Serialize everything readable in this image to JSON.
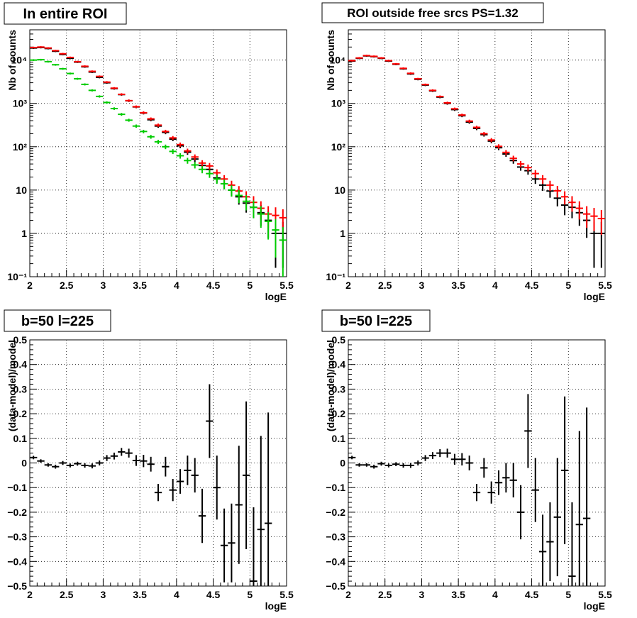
{
  "chart_data": [
    {
      "type": "scatter",
      "title": "In entire ROI",
      "xlabel": "logE",
      "ylabel": "Nb of counts",
      "xlim": [
        2,
        5.5
      ],
      "ylim": [
        0.1,
        50000
      ],
      "yscale": "log",
      "grid": true,
      "xticks": [
        "2",
        "2.5",
        "3",
        "3.5",
        "4",
        "4.5",
        "5",
        "5.5"
      ],
      "yticks": [
        "10⁻¹",
        "1",
        "10",
        "10²",
        "10³",
        "10⁴"
      ],
      "series": [
        {
          "color": "#000000",
          "x": [
            2.05,
            2.15,
            2.25,
            2.35,
            2.45,
            2.55,
            2.65,
            2.75,
            2.85,
            2.95,
            3.05,
            3.15,
            3.25,
            3.35,
            3.45,
            3.55,
            3.65,
            3.75,
            3.85,
            3.95,
            4.05,
            4.15,
            4.25,
            4.35,
            4.45,
            4.55,
            4.65,
            4.75,
            4.85,
            4.95,
            5.05,
            5.15,
            5.25,
            5.35,
            5.45
          ],
          "y": [
            19000,
            19500,
            18500,
            16000,
            13500,
            11000,
            9000,
            7000,
            5300,
            4000,
            3000,
            2200,
            1600,
            1150,
            830,
            600,
            420,
            300,
            215,
            150,
            105,
            75,
            52,
            37,
            30,
            19,
            14,
            10,
            7,
            5,
            4,
            3,
            2,
            1,
            1
          ]
        },
        {
          "color": "#ff0000",
          "x": [
            2.05,
            2.15,
            2.25,
            2.35,
            2.45,
            2.55,
            2.65,
            2.75,
            2.85,
            2.95,
            3.05,
            3.15,
            3.25,
            3.35,
            3.45,
            3.55,
            3.65,
            3.75,
            3.85,
            3.95,
            4.05,
            4.15,
            4.25,
            4.35,
            4.45,
            4.55,
            4.65,
            4.75,
            4.85,
            4.95,
            5.05,
            5.15,
            5.25,
            5.35,
            5.45
          ],
          "y": [
            19500,
            20000,
            19000,
            16500,
            14000,
            11500,
            9200,
            7200,
            5500,
            4200,
            3100,
            2250,
            1620,
            1160,
            840,
            610,
            440,
            315,
            225,
            160,
            112,
            80,
            58,
            42,
            36,
            25,
            18,
            13,
            9.5,
            7,
            5.2,
            3.8,
            2.8,
            2.6,
            2.3
          ]
        },
        {
          "color": "#00cc00",
          "x": [
            2.05,
            2.15,
            2.25,
            2.35,
            2.45,
            2.55,
            2.65,
            2.75,
            2.85,
            2.95,
            3.05,
            3.15,
            3.25,
            3.35,
            3.45,
            3.55,
            3.65,
            3.75,
            3.85,
            3.95,
            4.05,
            4.15,
            4.25,
            4.35,
            4.45,
            4.55,
            4.65,
            4.75,
            4.85,
            4.95,
            5.05,
            5.15,
            5.25,
            5.35,
            5.45
          ],
          "y": [
            10000,
            10200,
            9200,
            7800,
            6300,
            4900,
            3700,
            2750,
            2000,
            1450,
            1050,
            760,
            560,
            410,
            300,
            225,
            170,
            130,
            100,
            78,
            62,
            48,
            38,
            30,
            24,
            18,
            14,
            10,
            7.5,
            5.5,
            4,
            2.8,
            1.9,
            1.2,
            0.7
          ]
        }
      ]
    },
    {
      "type": "scatter",
      "title": "ROI outside free srcs PS=1.32",
      "xlabel": "logE",
      "ylabel": "Nb of counts",
      "xlim": [
        2,
        5.5
      ],
      "ylim": [
        0.1,
        50000
      ],
      "yscale": "log",
      "grid": true,
      "xticks": [
        "2",
        "2.5",
        "3",
        "3.5",
        "4",
        "4.5",
        "5",
        "5.5"
      ],
      "yticks": [
        "10⁻¹",
        "1",
        "10",
        "10²",
        "10³",
        "10⁴"
      ],
      "series": [
        {
          "color": "#000000",
          "x": [
            2.05,
            2.15,
            2.25,
            2.35,
            2.45,
            2.55,
            2.65,
            2.75,
            2.85,
            2.95,
            3.05,
            3.15,
            3.25,
            3.35,
            3.45,
            3.55,
            3.65,
            3.75,
            3.85,
            3.95,
            4.05,
            4.15,
            4.25,
            4.35,
            4.45,
            4.55,
            4.65,
            4.75,
            4.85,
            4.95,
            5.05,
            5.15,
            5.25,
            5.35,
            5.45
          ],
          "y": [
            9500,
            11000,
            12500,
            12000,
            11000,
            9500,
            8000,
            6300,
            4800,
            3600,
            2650,
            1950,
            1400,
            1000,
            720,
            520,
            370,
            265,
            190,
            135,
            95,
            68,
            48,
            34,
            28,
            18,
            13,
            9.5,
            6.5,
            4.5,
            4,
            3,
            2,
            1,
            1
          ]
        },
        {
          "color": "#ff0000",
          "x": [
            2.05,
            2.15,
            2.25,
            2.35,
            2.45,
            2.55,
            2.65,
            2.75,
            2.85,
            2.95,
            3.05,
            3.15,
            3.25,
            3.35,
            3.45,
            3.55,
            3.65,
            3.75,
            3.85,
            3.95,
            4.05,
            4.15,
            4.25,
            4.35,
            4.45,
            4.55,
            4.65,
            4.75,
            4.85,
            4.95,
            5.05,
            5.15,
            5.25,
            5.35,
            5.45
          ],
          "y": [
            9700,
            11200,
            12700,
            12200,
            11200,
            9700,
            8150,
            6450,
            4950,
            3700,
            2720,
            2000,
            1440,
            1030,
            750,
            540,
            390,
            280,
            200,
            143,
            102,
            74,
            54,
            40,
            33,
            24,
            18,
            13,
            9.6,
            7,
            5.2,
            3.8,
            2.8,
            2.5,
            2.2
          ]
        }
      ]
    },
    {
      "type": "scatter",
      "title": "b=50 l=225",
      "xlabel": "logE",
      "ylabel": "(data-model)/model",
      "xlim": [
        2,
        5.5
      ],
      "ylim": [
        -0.5,
        0.5
      ],
      "grid": true,
      "xticks": [
        "2",
        "2.5",
        "3",
        "3.5",
        "4",
        "4.5",
        "5",
        "5.5"
      ],
      "yticks": [
        "−0.5",
        "−0.4",
        "−0.3",
        "−0.2",
        "−0.1",
        "0",
        "0.1",
        "0.2",
        "0.3",
        "0.4",
        "0.5"
      ],
      "series": [
        {
          "color": "#000000",
          "x": [
            2.05,
            2.15,
            2.25,
            2.35,
            2.45,
            2.55,
            2.65,
            2.75,
            2.85,
            2.95,
            3.05,
            3.15,
            3.25,
            3.35,
            3.45,
            3.55,
            3.65,
            3.75,
            3.85,
            3.95,
            4.05,
            4.15,
            4.25,
            4.35,
            4.45,
            4.55,
            4.65,
            4.75,
            4.85,
            4.95,
            5.05,
            5.15,
            5.25
          ],
          "y": [
            0.022,
            0.008,
            -0.008,
            -0.015,
            0.0,
            -0.01,
            -0.003,
            -0.01,
            -0.012,
            0.0,
            0.02,
            0.028,
            0.045,
            0.04,
            0.01,
            0.008,
            -0.005,
            -0.12,
            -0.015,
            -0.11,
            -0.075,
            -0.03,
            -0.05,
            -0.215,
            0.17,
            -0.1,
            -0.335,
            -0.325,
            -0.17,
            -0.05,
            -0.48,
            -0.27,
            -0.245
          ],
          "yerr": [
            0.007,
            0.007,
            0.007,
            0.008,
            0.008,
            0.008,
            0.008,
            0.009,
            0.01,
            0.01,
            0.012,
            0.014,
            0.016,
            0.018,
            0.022,
            0.025,
            0.03,
            0.035,
            0.04,
            0.045,
            0.05,
            0.06,
            0.07,
            0.11,
            0.15,
            0.13,
            0.15,
            0.16,
            0.24,
            0.3,
            0.3,
            0.38,
            0.45
          ]
        }
      ]
    },
    {
      "type": "scatter",
      "title": "b=50 l=225",
      "xlabel": "logE",
      "ylabel": "(data-model)/model",
      "xlim": [
        2,
        5.5
      ],
      "ylim": [
        -0.5,
        0.5
      ],
      "grid": true,
      "xticks": [
        "2",
        "2.5",
        "3",
        "3.5",
        "4",
        "4.5",
        "5",
        "5.5"
      ],
      "yticks": [
        "−0.5",
        "−0.4",
        "−0.3",
        "−0.2",
        "−0.1",
        "0",
        "0.1",
        "0.2",
        "0.3",
        "0.4",
        "0.5"
      ],
      "series": [
        {
          "color": "#000000",
          "x": [
            2.05,
            2.15,
            2.25,
            2.35,
            2.45,
            2.55,
            2.65,
            2.75,
            2.85,
            2.95,
            3.05,
            3.15,
            3.25,
            3.35,
            3.45,
            3.55,
            3.65,
            3.75,
            3.85,
            3.95,
            4.05,
            4.15,
            4.25,
            4.35,
            4.45,
            4.55,
            4.65,
            4.75,
            4.85,
            4.95,
            5.05,
            5.15,
            5.25
          ],
          "y": [
            0.022,
            -0.008,
            -0.008,
            -0.015,
            -0.003,
            -0.01,
            -0.005,
            -0.01,
            -0.01,
            0.0,
            0.02,
            0.03,
            0.04,
            0.04,
            0.015,
            0.015,
            0.0,
            -0.12,
            -0.02,
            -0.12,
            -0.08,
            -0.06,
            -0.07,
            -0.2,
            0.13,
            -0.11,
            -0.36,
            -0.32,
            -0.22,
            -0.03,
            -0.46,
            -0.25,
            -0.225
          ],
          "yerr": [
            0.007,
            0.007,
            0.007,
            0.008,
            0.008,
            0.008,
            0.008,
            0.009,
            0.01,
            0.01,
            0.012,
            0.014,
            0.016,
            0.018,
            0.022,
            0.025,
            0.03,
            0.035,
            0.04,
            0.045,
            0.05,
            0.06,
            0.07,
            0.11,
            0.15,
            0.13,
            0.15,
            0.16,
            0.24,
            0.3,
            0.3,
            0.38,
            0.45
          ]
        }
      ]
    }
  ]
}
